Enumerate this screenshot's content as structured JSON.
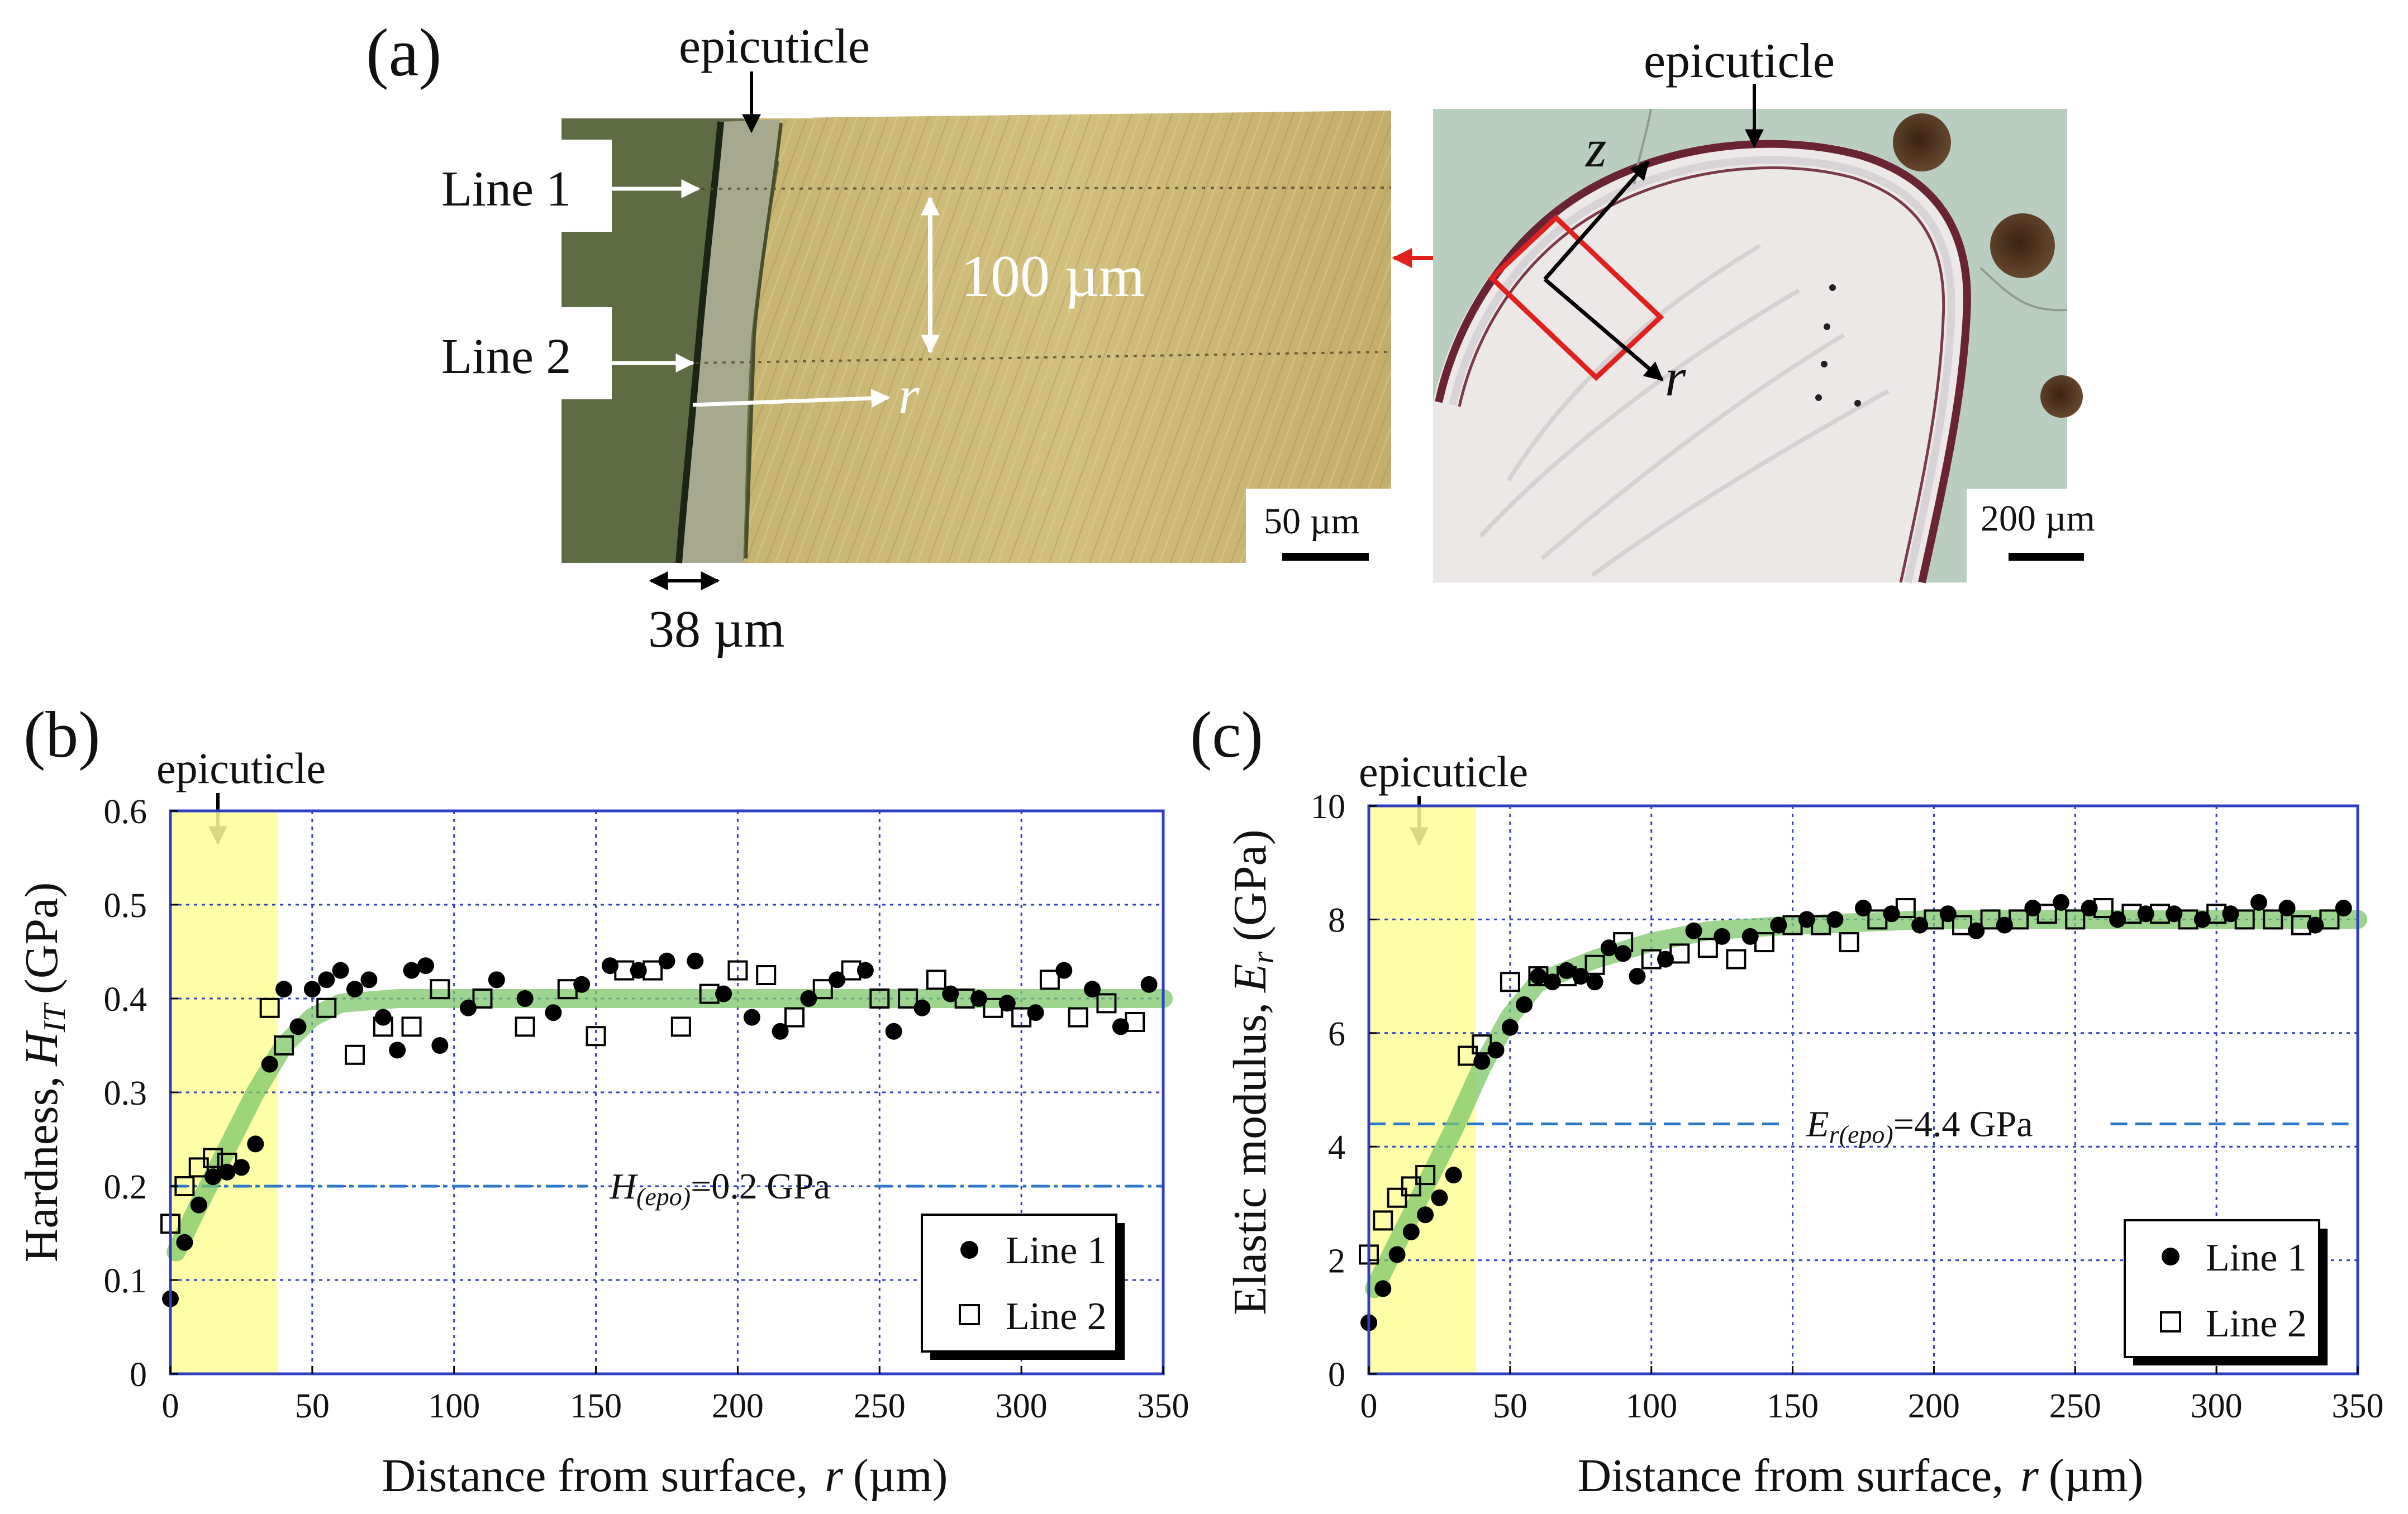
{
  "panel_a": {
    "label": "(a)",
    "left_image": {
      "epicuticle_label": "epicuticle",
      "line1_label": "Line 1",
      "line2_label": "Line 2",
      "spacing_label": "100 µm",
      "r_label": "r",
      "thickness_label": "38 µm",
      "scale_label": "50 µm"
    },
    "right_image": {
      "epicuticle_label": "epicuticle",
      "z_label": "z",
      "r_label": "r",
      "scale_label": "200 µm"
    }
  },
  "chart_data": [
    {
      "type": "scatter",
      "panel_label": "(b)",
      "annotation": "epicuticle",
      "xlabel_text": "Distance from surface,",
      "xlabel_var": "r",
      "xlabel_unit": "(µm)",
      "ylabel_text": "Hardness,",
      "ylabel_var": "H",
      "ylabel_sub": "IT",
      "ylabel_unit": "(GPa)",
      "xlim": [
        0,
        350
      ],
      "ylim": [
        0,
        0.6
      ],
      "xticks": [
        0,
        50,
        100,
        150,
        200,
        250,
        300,
        350
      ],
      "yticks": [
        0,
        0.1,
        0.2,
        0.3,
        0.4,
        0.5,
        0.6
      ],
      "xtick_labels": [
        "0",
        "50",
        "100",
        "150",
        "200",
        "250",
        "300",
        "350"
      ],
      "ytick_labels": [
        "0",
        "0.1",
        "0.2",
        "0.3",
        "0.4",
        "0.5",
        "0.6"
      ],
      "grid": true,
      "highlight_region": [
        0,
        38
      ],
      "reference_line": {
        "y": 0.2,
        "label_main": "H",
        "label_sub": "(epo)",
        "label_value": "=0.2 GPa"
      },
      "legend": {
        "position": "bottom-right",
        "entries": [
          "Line 1",
          "Line 2"
        ]
      },
      "trend": {
        "x": [
          2,
          10,
          20,
          30,
          40,
          50,
          60,
          80,
          100,
          150,
          200,
          250,
          300,
          350
        ],
        "y": [
          0.13,
          0.18,
          0.24,
          0.3,
          0.35,
          0.38,
          0.395,
          0.4,
          0.4,
          0.4,
          0.4,
          0.4,
          0.4,
          0.4
        ]
      },
      "series": [
        {
          "name": "Line 1",
          "marker": "filled-circle",
          "x": [
            0,
            5,
            10,
            15,
            20,
            25,
            30,
            35,
            40,
            45,
            50,
            55,
            60,
            65,
            70,
            75,
            80,
            85,
            90,
            95,
            105,
            115,
            125,
            135,
            145,
            155,
            165,
            175,
            185,
            195,
            205,
            215,
            225,
            235,
            245,
            255,
            265,
            275,
            285,
            295,
            305,
            315,
            325,
            335,
            345
          ],
          "y": [
            0.08,
            0.14,
            0.18,
            0.21,
            0.215,
            0.22,
            0.245,
            0.33,
            0.41,
            0.37,
            0.41,
            0.42,
            0.43,
            0.41,
            0.42,
            0.38,
            0.345,
            0.43,
            0.435,
            0.35,
            0.39,
            0.42,
            0.4,
            0.385,
            0.415,
            0.435,
            0.43,
            0.44,
            0.44,
            0.405,
            0.38,
            0.365,
            0.4,
            0.42,
            0.43,
            0.365,
            0.39,
            0.405,
            0.4,
            0.395,
            0.385,
            0.43,
            0.41,
            0.37,
            0.415
          ]
        },
        {
          "name": "Line 2",
          "marker": "open-square",
          "x": [
            0,
            5,
            10,
            15,
            20,
            35,
            40,
            55,
            65,
            75,
            85,
            95,
            110,
            125,
            140,
            150,
            160,
            170,
            180,
            190,
            200,
            210,
            220,
            230,
            240,
            250,
            260,
            270,
            280,
            290,
            300,
            310,
            320,
            330,
            340
          ],
          "y": [
            0.16,
            0.2,
            0.22,
            0.23,
            0.225,
            0.39,
            0.35,
            0.39,
            0.34,
            0.37,
            0.37,
            0.41,
            0.4,
            0.37,
            0.41,
            0.36,
            0.43,
            0.43,
            0.37,
            0.405,
            0.43,
            0.425,
            0.38,
            0.41,
            0.43,
            0.4,
            0.4,
            0.42,
            0.4,
            0.39,
            0.38,
            0.42,
            0.38,
            0.395,
            0.375
          ]
        }
      ]
    },
    {
      "type": "scatter",
      "panel_label": "(c)",
      "annotation": "epicuticle",
      "xlabel_text": "Distance from surface,",
      "xlabel_var": "r",
      "xlabel_unit": "(µm)",
      "ylabel_text": "Elastic modulus,",
      "ylabel_var": "E",
      "ylabel_sub": "r",
      "ylabel_unit": "(GPa)",
      "xlim": [
        0,
        350
      ],
      "ylim": [
        0,
        10
      ],
      "xticks": [
        0,
        50,
        100,
        150,
        200,
        250,
        300,
        350
      ],
      "yticks": [
        0,
        2,
        4,
        6,
        8,
        10
      ],
      "xtick_labels": [
        "0",
        "50",
        "100",
        "150",
        "200",
        "250",
        "300",
        "350"
      ],
      "ytick_labels": [
        "0",
        "2",
        "4",
        "6",
        "8",
        "10"
      ],
      "grid": true,
      "highlight_region": [
        0,
        38
      ],
      "reference_line": {
        "y": 4.4,
        "label_main": "E",
        "label_sub": "r(epo)",
        "label_value": "=4.4 GPa"
      },
      "legend": {
        "position": "bottom-right",
        "entries": [
          "Line 1",
          "Line 2"
        ]
      },
      "trend": {
        "x": [
          2,
          10,
          20,
          30,
          40,
          50,
          60,
          80,
          100,
          120,
          150,
          200,
          250,
          300,
          350
        ],
        "y": [
          1.5,
          2.3,
          3.3,
          4.3,
          5.4,
          6.3,
          6.9,
          7.3,
          7.6,
          7.8,
          7.9,
          8.0,
          8.0,
          8.0,
          8.0
        ]
      },
      "series": [
        {
          "name": "Line 1",
          "marker": "filled-circle",
          "x": [
            0,
            5,
            10,
            15,
            20,
            25,
            30,
            40,
            45,
            50,
            55,
            60,
            65,
            70,
            75,
            80,
            85,
            90,
            95,
            105,
            115,
            125,
            135,
            145,
            155,
            165,
            175,
            185,
            195,
            205,
            215,
            225,
            235,
            245,
            255,
            265,
            275,
            285,
            295,
            305,
            315,
            325,
            335,
            345
          ],
          "y": [
            0.9,
            1.5,
            2.1,
            2.5,
            2.8,
            3.1,
            3.5,
            5.5,
            5.7,
            6.1,
            6.5,
            7.0,
            6.9,
            7.1,
            7.0,
            6.9,
            7.5,
            7.4,
            7.0,
            7.3,
            7.8,
            7.7,
            7.7,
            7.9,
            8.0,
            8.0,
            8.2,
            8.1,
            7.9,
            8.1,
            7.8,
            7.9,
            8.2,
            8.3,
            8.2,
            8.0,
            8.1,
            8.1,
            8.0,
            8.1,
            8.3,
            8.2,
            7.9,
            8.2
          ]
        },
        {
          "name": "Line 2",
          "marker": "open-square",
          "x": [
            0,
            5,
            10,
            15,
            20,
            35,
            40,
            50,
            60,
            70,
            80,
            90,
            100,
            110,
            120,
            130,
            140,
            150,
            160,
            170,
            180,
            190,
            200,
            210,
            220,
            230,
            240,
            250,
            260,
            270,
            280,
            290,
            300,
            310,
            320,
            330,
            340
          ],
          "y": [
            2.1,
            2.7,
            3.1,
            3.3,
            3.5,
            5.6,
            5.8,
            6.9,
            7.0,
            7.0,
            7.2,
            7.6,
            7.3,
            7.4,
            7.5,
            7.3,
            7.6,
            7.9,
            7.9,
            7.6,
            8.0,
            8.2,
            8.0,
            7.9,
            8.0,
            8.0,
            8.1,
            8.0,
            8.2,
            8.1,
            8.1,
            8.0,
            8.1,
            8.0,
            8.0,
            7.9,
            8.0
          ]
        }
      ]
    }
  ]
}
